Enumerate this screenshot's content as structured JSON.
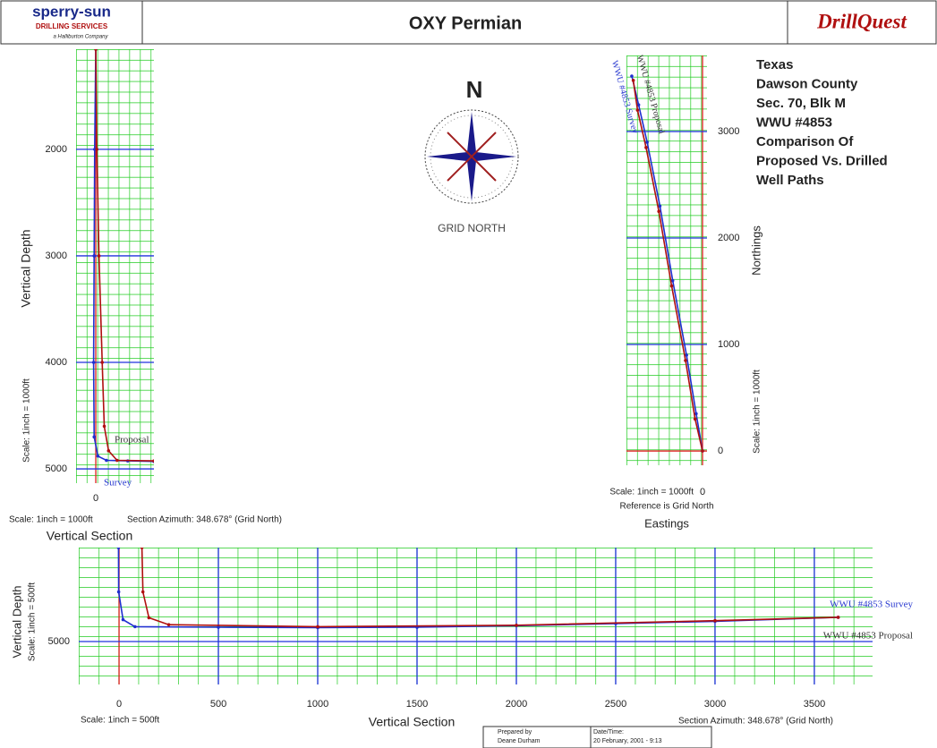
{
  "header": {
    "logo_left": "sperry-sun",
    "logo_sub": "DRILLING SERVICES",
    "logo_tag": "a Halliburton Company",
    "title": "OXY Permian",
    "logo_right": "DrillQuest"
  },
  "compass": {
    "north": "N",
    "label": "GRID NORTH"
  },
  "info": {
    "lines": [
      "Texas",
      "Dawson County",
      "Sec. 70, Blk M",
      "WWU #4853",
      "Comparison Of",
      "Proposed Vs. Drilled",
      "Well Paths"
    ]
  },
  "footer": {
    "prepared_label": "Prepared by",
    "prepared_by": "Deane Durham",
    "date_label": "Date/Time:",
    "date": "20 February, 2001 - 9:13"
  },
  "chart_data": [
    {
      "type": "line",
      "y_axis_label": "Vertical Depth",
      "x_axis_label": "Vertical Section",
      "annotations": [
        "Scale: 1inch = 1000ft",
        "Scale: 1inch = 1000ft",
        "Section Azimuth: 348.678° (Grid North)"
      ],
      "xlim": [
        -185,
        546
      ],
      "ylim": [
        1060,
        5134
      ],
      "y_inverted": true,
      "y_axis_side": "left",
      "xticks": [
        0
      ],
      "yticks": [
        2000,
        3000,
        4000,
        5000
      ],
      "grid": true,
      "series": [
        {
          "name": "Survey",
          "color": "#1f2fd0",
          "x": [
            0,
            -10,
            -15,
            -20,
            -15,
            20,
            100,
            300,
            546
          ],
          "values": [
            1060,
            2000,
            3000,
            4000,
            4700,
            4880,
            4920,
            4925,
            4930
          ]
        },
        {
          "name": "Proposal",
          "color": "#b01010",
          "x": [
            0,
            10,
            30,
            60,
            80,
            120,
            200,
            546
          ],
          "values": [
            1060,
            2000,
            3000,
            4000,
            4600,
            4830,
            4920,
            4925
          ]
        }
      ]
    },
    {
      "type": "line",
      "y_axis_label": "Northings",
      "x_axis_label": "Eastings",
      "annotations": [
        "Scale: 1inch = 1000ft",
        "Scale: 1inch = 1000ft",
        "Reference is Grid North"
      ],
      "xlim": [
        -714,
        42
      ],
      "ylim": [
        -134,
        3714
      ],
      "y_inverted": false,
      "y_axis_side": "right",
      "xticks": [
        0
      ],
      "yticks": [
        0,
        1000,
        2000,
        3000
      ],
      "grid": true,
      "series": [
        {
          "name": "WWU #4853 Survey",
          "color": "#1f2fd0",
          "x": [
            0,
            -60,
            -150,
            -280,
            -400,
            -520,
            -600,
            -664
          ],
          "values": [
            0,
            350,
            900,
            1600,
            2300,
            2900,
            3250,
            3520
          ]
        },
        {
          "name": "WWU #4853 Proposal",
          "color": "#b01010",
          "x": [
            0,
            -70,
            -160,
            -290,
            -410,
            -530,
            -610,
            -650
          ],
          "values": [
            0,
            300,
            850,
            1550,
            2250,
            2850,
            3200,
            3480
          ]
        }
      ]
    },
    {
      "type": "line",
      "y_axis_label": "Vertical Depth",
      "x_axis_label": "Vertical Section",
      "annotations": [
        "Scale: 1inch = 500ft",
        "Scale: 1inch = 500ft",
        "Section Azimuth: 348.678° (Grid North)"
      ],
      "xlim": [
        -203,
        3793
      ],
      "ylim": [
        4527,
        5216
      ],
      "y_inverted": true,
      "y_axis_side": "left",
      "xticks": [
        0,
        500,
        1000,
        1500,
        2000,
        2500,
        3000,
        3500
      ],
      "yticks": [
        5000
      ],
      "grid": true,
      "series": [
        {
          "name": "WWU #4853 Survey",
          "color": "#1f2fd0",
          "x": [
            -3,
            -2,
            20,
            80,
            500,
            1000,
            1500,
            2000,
            2500,
            3000,
            3620
          ],
          "values": [
            4527,
            4750,
            4890,
            4925,
            4928,
            4930,
            4928,
            4920,
            4910,
            4898,
            4878
          ]
        },
        {
          "name": "WWU #4853 Proposal",
          "color": "#b01010",
          "x": [
            115,
            120,
            150,
            250,
            1000,
            2000,
            3000,
            3620
          ],
          "values": [
            4527,
            4750,
            4880,
            4915,
            4925,
            4918,
            4895,
            4878
          ]
        }
      ]
    }
  ]
}
